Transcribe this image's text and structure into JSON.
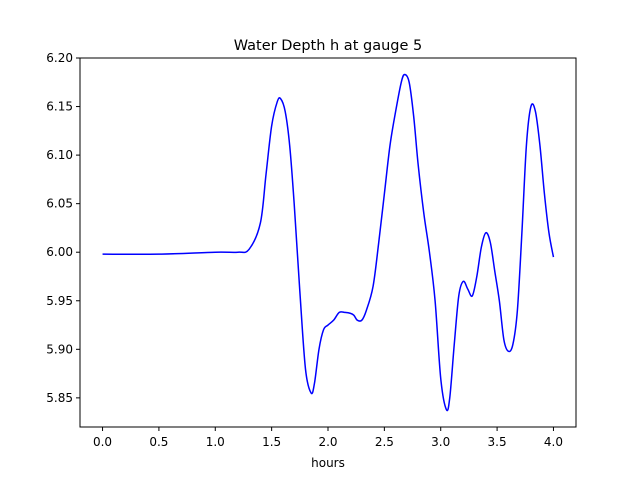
{
  "chart_data": {
    "type": "line",
    "title": "Water Depth h at gauge 5",
    "xlabel": "hours",
    "ylabel": "",
    "xlim": [
      -0.2,
      4.2
    ],
    "ylim": [
      5.82,
      6.2
    ],
    "xticks": [
      0.0,
      0.5,
      1.0,
      1.5,
      2.0,
      2.5,
      3.0,
      3.5,
      4.0
    ],
    "xtick_labels": [
      "0.0",
      "0.5",
      "1.0",
      "1.5",
      "2.0",
      "2.5",
      "3.0",
      "3.5",
      "4.0"
    ],
    "yticks": [
      5.85,
      5.9,
      5.95,
      6.0,
      6.05,
      6.1,
      6.15,
      6.2
    ],
    "ytick_labels": [
      "5.85",
      "5.90",
      "5.95",
      "6.00",
      "6.05",
      "6.10",
      "6.15",
      "6.20"
    ],
    "grid": false,
    "series": [
      {
        "color": "#0000ff",
        "x": [
          0.0,
          0.5,
          1.0,
          1.2,
          1.3,
          1.4,
          1.45,
          1.5,
          1.55,
          1.58,
          1.62,
          1.66,
          1.7,
          1.75,
          1.8,
          1.85,
          1.88,
          1.92,
          1.96,
          2.0,
          2.05,
          2.1,
          2.15,
          2.2,
          2.23,
          2.26,
          2.3,
          2.34,
          2.4,
          2.45,
          2.5,
          2.55,
          2.6,
          2.65,
          2.68,
          2.72,
          2.76,
          2.8,
          2.85,
          2.9,
          2.95,
          3.0,
          3.05,
          3.08,
          3.12,
          3.16,
          3.2,
          3.24,
          3.28,
          3.32,
          3.36,
          3.4,
          3.44,
          3.48,
          3.52,
          3.56,
          3.6,
          3.64,
          3.68,
          3.72,
          3.76,
          3.8,
          3.84,
          3.88,
          3.92,
          3.96,
          4.0
        ],
        "y": [
          5.998,
          5.998,
          6.0,
          6.0,
          6.003,
          6.03,
          6.08,
          6.13,
          6.155,
          6.158,
          6.145,
          6.11,
          6.05,
          5.96,
          5.88,
          5.855,
          5.865,
          5.9,
          5.92,
          5.925,
          5.93,
          5.938,
          5.938,
          5.937,
          5.935,
          5.93,
          5.93,
          5.94,
          5.965,
          6.01,
          6.06,
          6.11,
          6.145,
          6.175,
          6.183,
          6.175,
          6.14,
          6.09,
          6.04,
          6.0,
          5.95,
          5.87,
          5.838,
          5.85,
          5.905,
          5.955,
          5.97,
          5.962,
          5.955,
          5.975,
          6.005,
          6.02,
          6.01,
          5.98,
          5.95,
          5.91,
          5.898,
          5.905,
          5.94,
          6.02,
          6.11,
          6.15,
          6.145,
          6.11,
          6.06,
          6.02,
          5.995
        ]
      }
    ]
  }
}
